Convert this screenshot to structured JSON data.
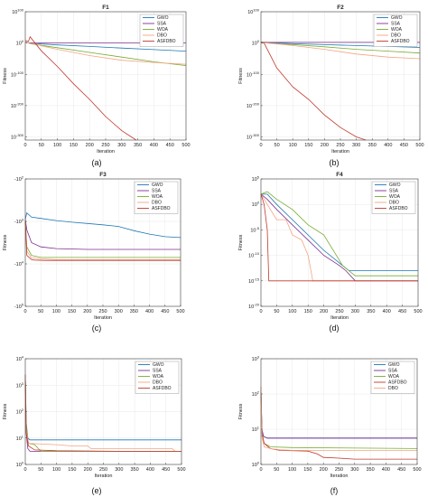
{
  "colors": {
    "GWO": "#1f77b4",
    "SSA": "#7e2f8e",
    "WOA": "#77ac30",
    "DBO": "#f4a582",
    "ASFDBO": "#c0392b"
  },
  "xlabel": "Iteration",
  "ylabel": "Fitness",
  "panel_letters": [
    "(a)",
    "(b)",
    "(c)",
    "(d)",
    "(e)",
    "(f)"
  ],
  "chart_data": [
    {
      "type": "line",
      "title": "F1",
      "xlabel": "Iteration",
      "ylabel": "Fitness",
      "xlim": [
        0,
        500
      ],
      "xticks": [
        0,
        50,
        100,
        150,
        200,
        250,
        300,
        350,
        400,
        450,
        500
      ],
      "yscale": "log",
      "ylim_exp": [
        -310,
        100
      ],
      "yticks": [
        {
          "exp": 100,
          "label": "10^100"
        },
        {
          "exp": 0,
          "label": "10^0"
        },
        {
          "exp": -100,
          "label": "10^-100"
        },
        {
          "exp": -200,
          "label": "10^-200"
        },
        {
          "exp": -300,
          "label": "10^-300"
        }
      ],
      "grid": true,
      "legend_position": "top-right",
      "legend": [
        "GWO",
        "SSA",
        "WOA",
        "DBO",
        "ASFDBO"
      ],
      "series": [
        {
          "name": "GWO",
          "x": [
            0,
            10,
            20,
            50,
            100,
            200,
            300,
            400,
            500
          ],
          "log10_y": [
            4,
            1,
            0,
            -3,
            -6,
            -11,
            -16,
            -21,
            -26
          ]
        },
        {
          "name": "SSA",
          "x": [
            0,
            10,
            20,
            100,
            200,
            300,
            400,
            500
          ],
          "log10_y": [
            4,
            1,
            0,
            0,
            0,
            0,
            0,
            0
          ]
        },
        {
          "name": "WOA",
          "x": [
            0,
            10,
            20,
            100,
            200,
            300,
            400,
            500
          ],
          "log10_y": [
            4,
            0,
            -3,
            -15,
            -30,
            -45,
            -60,
            -72
          ]
        },
        {
          "name": "DBO",
          "x": [
            0,
            10,
            20,
            100,
            200,
            300,
            400,
            500
          ],
          "log10_y": [
            4,
            0,
            -2,
            -20,
            -40,
            -55,
            -62,
            -68
          ]
        },
        {
          "name": "ASFDBO",
          "x": [
            0,
            10,
            15,
            50,
            100,
            150,
            200,
            250,
            300,
            345
          ],
          "log10_y": [
            8,
            6,
            20,
            -25,
            -75,
            -130,
            -180,
            -235,
            -280,
            -310
          ]
        }
      ]
    },
    {
      "type": "line",
      "title": "F2",
      "xlabel": "Iteration",
      "ylabel": "Fitness",
      "xlim": [
        0,
        500
      ],
      "xticks": [
        0,
        50,
        100,
        150,
        200,
        250,
        300,
        350,
        400,
        450,
        500
      ],
      "yscale": "log",
      "ylim_exp": [
        -310,
        100
      ],
      "yticks": [
        {
          "exp": 100,
          "label": "10^100"
        },
        {
          "exp": 0,
          "label": "10^0"
        },
        {
          "exp": -100,
          "label": "10^-100"
        },
        {
          "exp": -200,
          "label": "10^-200"
        },
        {
          "exp": -300,
          "label": "10^-300"
        }
      ],
      "grid": true,
      "legend_position": "top-right",
      "legend": [
        "GWO",
        "SSA",
        "WOA",
        "DBO",
        "ASFDBO"
      ],
      "series": [
        {
          "name": "GWO",
          "x": [
            0,
            20,
            100,
            200,
            300,
            400,
            500
          ],
          "log10_y": [
            3,
            2,
            -2,
            -5,
            -8,
            -11,
            -14
          ]
        },
        {
          "name": "SSA",
          "x": [
            0,
            20,
            100,
            200,
            300,
            400,
            500
          ],
          "log10_y": [
            3,
            2,
            2,
            2,
            2,
            2,
            2
          ]
        },
        {
          "name": "WOA",
          "x": [
            0,
            20,
            100,
            200,
            300,
            400,
            500
          ],
          "log10_y": [
            3,
            0,
            -5,
            -12,
            -20,
            -26,
            -32
          ]
        },
        {
          "name": "DBO",
          "x": [
            0,
            20,
            100,
            200,
            300,
            400,
            500
          ],
          "log10_y": [
            3,
            0,
            -8,
            -20,
            -35,
            -45,
            -50
          ]
        },
        {
          "name": "ASFDBO",
          "x": [
            0,
            10,
            20,
            50,
            100,
            150,
            200,
            250,
            300,
            330
          ],
          "log10_y": [
            3,
            0,
            -20,
            -80,
            -140,
            -180,
            -230,
            -270,
            -300,
            -310
          ]
        }
      ]
    },
    {
      "type": "line",
      "title": "F3",
      "xlabel": "Iteration",
      "ylabel": "Fitness",
      "xlim": [
        0,
        500
      ],
      "xticks": [
        0,
        50,
        100,
        150,
        200,
        250,
        300,
        350,
        400,
        450,
        500
      ],
      "yscale": "log",
      "negative": true,
      "ylim_exp": [
        2,
        5
      ],
      "yticks": [
        {
          "exp": 2,
          "label": "-10^2"
        },
        {
          "exp": 3,
          "label": "-10^3"
        },
        {
          "exp": 4,
          "label": "-10^4"
        },
        {
          "exp": 5,
          "label": "-10^5"
        }
      ],
      "grid": true,
      "legend_position": "top-right",
      "legend": [
        "GWO",
        "SSA",
        "WOA",
        "DBO",
        "ASFDBO"
      ],
      "series": [
        {
          "name": "GWO",
          "x": [
            0,
            5,
            20,
            50,
            100,
            150,
            200,
            250,
            300,
            350,
            400,
            450,
            500
          ],
          "log10_y": [
            2.95,
            2.8,
            2.9,
            2.93,
            2.98,
            3.02,
            3.05,
            3.08,
            3.12,
            3.22,
            3.3,
            3.36,
            3.38
          ]
        },
        {
          "name": "SSA",
          "x": [
            0,
            5,
            20,
            50,
            100,
            200,
            300,
            400,
            500
          ],
          "log10_y": [
            2.95,
            3.2,
            3.5,
            3.6,
            3.64,
            3.66,
            3.66,
            3.66,
            3.66
          ]
        },
        {
          "name": "WOA",
          "x": [
            0,
            5,
            20,
            50,
            100,
            200,
            300,
            400,
            500
          ],
          "log10_y": [
            2.95,
            3.6,
            3.8,
            3.85,
            3.85,
            3.85,
            3.85,
            3.85,
            3.85
          ]
        },
        {
          "name": "DBO",
          "x": [
            0,
            5,
            20,
            50,
            100,
            500
          ],
          "log10_y": [
            2.95,
            3.7,
            3.86,
            3.88,
            3.9,
            3.9
          ]
        },
        {
          "name": "ASFDBO",
          "x": [
            0,
            5,
            20,
            30,
            60,
            500
          ],
          "log10_y": [
            2.95,
            3.8,
            3.9,
            3.91,
            3.92,
            3.92
          ]
        }
      ]
    },
    {
      "type": "line",
      "title": "F4",
      "xlabel": "Iteration",
      "ylabel": "Fitness",
      "xlim": [
        0,
        500
      ],
      "xticks": [
        0,
        50,
        100,
        150,
        200,
        250,
        300,
        350,
        400,
        450,
        500
      ],
      "yscale": "log",
      "ylim_exp": [
        -20,
        5
      ],
      "yticks": [
        {
          "exp": 5,
          "label": "10^5"
        },
        {
          "exp": 0,
          "label": "10^0"
        },
        {
          "exp": -5,
          "label": "10^-5"
        },
        {
          "exp": -10,
          "label": "10^-10"
        },
        {
          "exp": -15,
          "label": "10^-15"
        },
        {
          "exp": -20,
          "label": "10^-20"
        }
      ],
      "grid": true,
      "legend_position": "top-right",
      "legend": [
        "GWO",
        "SSA",
        "WOA",
        "DBO",
        "ASFDBO"
      ],
      "series": [
        {
          "name": "GWO",
          "x": [
            0,
            20,
            50,
            100,
            150,
            200,
            250,
            280,
            500
          ],
          "log10_y": [
            2,
            2,
            0,
            -3,
            -6,
            -9,
            -11.5,
            -13,
            -13
          ]
        },
        {
          "name": "SSA",
          "x": [
            0,
            20,
            50,
            100,
            150,
            200,
            250,
            270,
            300,
            500
          ],
          "log10_y": [
            2,
            1,
            -1,
            -4,
            -7,
            -10,
            -12,
            -13,
            -15,
            -15
          ]
        },
        {
          "name": "WOA",
          "x": [
            0,
            20,
            50,
            100,
            150,
            200,
            260,
            300,
            500
          ],
          "log10_y": [
            2,
            2.5,
            1,
            -1,
            -4,
            -6,
            -12,
            -14,
            -14
          ]
        },
        {
          "name": "DBO",
          "x": [
            0,
            20,
            50,
            80,
            100,
            130,
            150,
            165,
            500
          ],
          "log10_y": [
            2,
            0,
            -3,
            -3,
            -6,
            -7,
            -10,
            -15,
            -15
          ]
        },
        {
          "name": "ASFDBO",
          "x": [
            0,
            10,
            20,
            25,
            500
          ],
          "log10_y": [
            2,
            0,
            -5,
            -15,
            -15
          ]
        }
      ]
    },
    {
      "type": "line",
      "title": "",
      "xlabel": "Iteration",
      "ylabel": "Fitness",
      "xlim": [
        0,
        500
      ],
      "xticks": [
        0,
        50,
        100,
        150,
        200,
        250,
        300,
        350,
        400,
        450,
        500
      ],
      "yscale": "log",
      "ylim_exp": [
        0,
        4
      ],
      "yticks": [
        {
          "exp": 4,
          "label": "10^4"
        },
        {
          "exp": 3,
          "label": "10^3"
        },
        {
          "exp": 2,
          "label": "10^2"
        },
        {
          "exp": 1,
          "label": "10^1"
        },
        {
          "exp": 0,
          "label": "10^0"
        }
      ],
      "grid": true,
      "legend_position": "top-right",
      "legend": [
        "GWO",
        "SSA",
        "WOA",
        "DBO",
        "ASFDBO"
      ],
      "series": [
        {
          "name": "GWO",
          "x": [
            0,
            3,
            8,
            15,
            500
          ],
          "log10_y": [
            3.4,
            1.6,
            1.0,
            0.93,
            0.93
          ]
        },
        {
          "name": "SSA",
          "x": [
            0,
            3,
            8,
            15,
            500
          ],
          "log10_y": [
            3.4,
            1.2,
            0.6,
            0.5,
            0.5
          ]
        },
        {
          "name": "WOA",
          "x": [
            0,
            3,
            10,
            30,
            50,
            500
          ],
          "log10_y": [
            3.4,
            1.5,
            0.8,
            0.75,
            0.5,
            0.5
          ]
        },
        {
          "name": "DBO",
          "x": [
            0,
            3,
            10,
            100,
            150,
            200,
            210,
            400,
            470,
            480,
            500
          ],
          "log10_y": [
            3.4,
            1.3,
            0.8,
            0.75,
            0.7,
            0.7,
            0.6,
            0.6,
            0.6,
            0.5,
            0.5
          ]
        },
        {
          "name": "ASFDBO",
          "x": [
            0,
            3,
            10,
            30,
            100,
            300,
            500
          ],
          "log10_y": [
            3.4,
            1.2,
            0.7,
            0.55,
            0.52,
            0.5,
            0.5
          ]
        }
      ]
    },
    {
      "type": "line",
      "title": "",
      "xlabel": "Iteration",
      "ylabel": "Fitness",
      "xlim": [
        0,
        500
      ],
      "xticks": [
        0,
        50,
        100,
        150,
        200,
        250,
        300,
        350,
        400,
        450,
        500
      ],
      "yscale": "log",
      "ylim_exp": [
        0,
        3
      ],
      "yticks": [
        {
          "exp": 3,
          "label": "10^3"
        },
        {
          "exp": 2,
          "label": "10^2"
        },
        {
          "exp": 1,
          "label": "10^1"
        },
        {
          "exp": 0,
          "label": "10^0"
        }
      ],
      "grid": true,
      "legend_position": "top-right",
      "legend": [
        "GWO",
        "SSA",
        "WOA",
        "ASFDBO",
        "DBO"
      ],
      "series": [
        {
          "name": "GWO",
          "x": [
            0,
            3,
            8,
            20,
            500
          ],
          "log10_y": [
            2.2,
            1.0,
            0.8,
            0.75,
            0.75
          ]
        },
        {
          "name": "SSA",
          "x": [
            0,
            3,
            8,
            20,
            500
          ],
          "log10_y": [
            2.2,
            1.0,
            0.8,
            0.75,
            0.75
          ]
        },
        {
          "name": "WOA",
          "x": [
            0,
            3,
            10,
            30,
            100,
            500
          ],
          "log10_y": [
            2.2,
            0.9,
            0.6,
            0.5,
            0.48,
            0.45
          ]
        },
        {
          "name": "ASFDBO",
          "x": [
            0,
            3,
            10,
            30,
            60,
            150,
            180,
            200,
            250,
            300,
            500
          ],
          "log10_y": [
            2.2,
            0.9,
            0.6,
            0.45,
            0.4,
            0.38,
            0.3,
            0.2,
            0.18,
            0.15,
            0.15
          ]
        },
        {
          "name": "DBO",
          "x": [
            0,
            3,
            10,
            30,
            60,
            100,
            500
          ],
          "log10_y": [
            2.2,
            0.8,
            0.5,
            0.45,
            0.42,
            0.4,
            0.4
          ]
        }
      ]
    }
  ]
}
